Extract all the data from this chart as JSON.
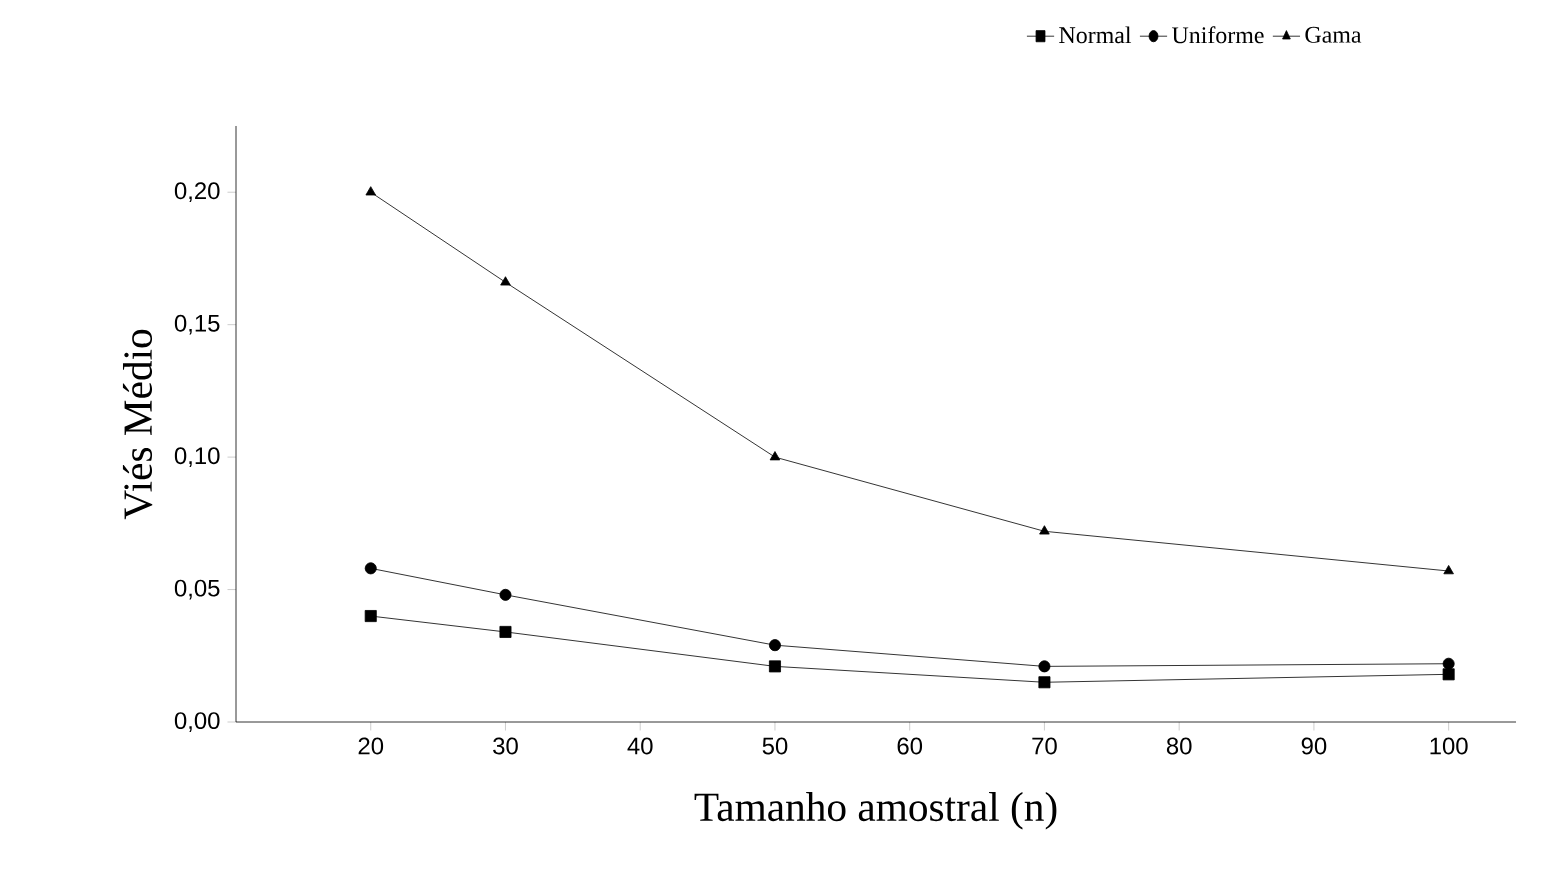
{
  "chart_data": {
    "type": "line",
    "xlabel": "Tamanho amostral (n)",
    "ylabel": "Viés Médio",
    "x": [
      20,
      30,
      50,
      70,
      100
    ],
    "series": [
      {
        "name": "Normal",
        "color": "#000000",
        "marker": "square",
        "values": [
          0.04,
          0.034,
          0.021,
          0.015,
          0.018
        ]
      },
      {
        "name": "Uniforme",
        "color": "#000000",
        "marker": "circle",
        "values": [
          0.058,
          0.048,
          0.029,
          0.021,
          0.022
        ]
      },
      {
        "name": "Gama",
        "color": "#000000",
        "marker": "triangle",
        "values": [
          0.2,
          0.166,
          0.1,
          0.072,
          0.057
        ]
      }
    ],
    "xlim": [
      10,
      105
    ],
    "xticks": [
      20,
      30,
      40,
      50,
      60,
      70,
      80,
      90,
      100
    ],
    "ylim": [
      0,
      0.225
    ],
    "yticks": [
      {
        "value": 0,
        "label": "0,00"
      },
      {
        "value": 0.05,
        "label": "0,05"
      },
      {
        "value": 0.1,
        "label": "0,10"
      },
      {
        "value": 0.15,
        "label": "0,15"
      },
      {
        "value": 0.2,
        "label": "0,20"
      }
    ],
    "legend": "top",
    "grid": false,
    "line_style": "solid"
  }
}
